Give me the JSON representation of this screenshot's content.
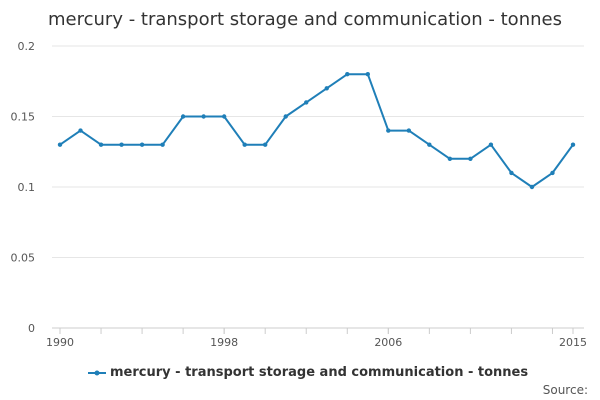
{
  "chart_data": {
    "type": "line",
    "title": "mercury - transport storage and communication - tonnes",
    "xlabel": "",
    "ylabel": "",
    "x": [
      1990,
      1991,
      1992,
      1993,
      1994,
      1995,
      1996,
      1997,
      1998,
      1999,
      2000,
      2001,
      2002,
      2003,
      2004,
      2005,
      2006,
      2007,
      2008,
      2009,
      2010,
      2011,
      2012,
      2013,
      2014,
      2015
    ],
    "series": [
      {
        "name": "mercury - transport storage and communication - tonnes",
        "color": "#1f7fb8",
        "values": [
          0.13,
          0.14,
          0.13,
          0.13,
          0.13,
          0.13,
          0.15,
          0.15,
          0.15,
          0.13,
          0.13,
          0.15,
          0.16,
          0.17,
          0.18,
          0.18,
          0.14,
          0.14,
          0.13,
          0.12,
          0.12,
          0.13,
          0.11,
          0.1,
          0.11,
          0.13
        ]
      }
    ],
    "xlim": [
      1990,
      2015
    ],
    "ylim": [
      0,
      0.2
    ],
    "x_ticks": [
      "1990",
      "1998",
      "2006",
      "2015"
    ],
    "y_ticks": [
      "0",
      "0.05",
      "0.1",
      "0.15",
      "0.2"
    ],
    "grid": true,
    "legend_position": "bottom"
  },
  "source_label": "Source:"
}
